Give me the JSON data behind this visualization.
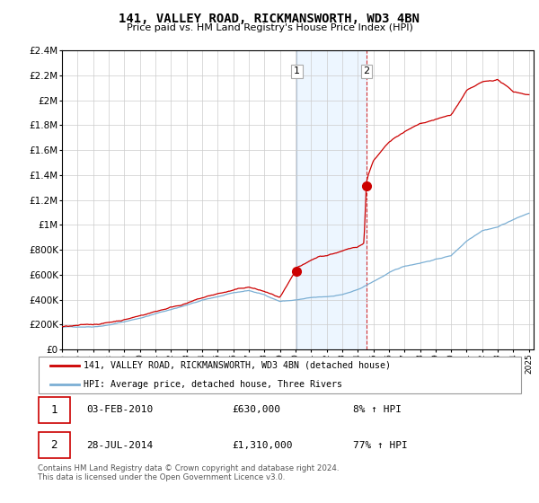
{
  "title": "141, VALLEY ROAD, RICKMANSWORTH, WD3 4BN",
  "subtitle": "Price paid vs. HM Land Registry's House Price Index (HPI)",
  "legend_entry1": "141, VALLEY ROAD, RICKMANSWORTH, WD3 4BN (detached house)",
  "legend_entry2": "HPI: Average price, detached house, Three Rivers",
  "annotation1_label": "1",
  "annotation1_date": "03-FEB-2010",
  "annotation1_price": "£630,000",
  "annotation1_hpi": "8% ↑ HPI",
  "annotation1_year": 2010.09,
  "annotation1_value": 630000,
  "annotation2_label": "2",
  "annotation2_date": "28-JUL-2014",
  "annotation2_price": "£1,310,000",
  "annotation2_hpi": "77% ↑ HPI",
  "annotation2_year": 2014.56,
  "annotation2_value": 1310000,
  "footer": "Contains HM Land Registry data © Crown copyright and database right 2024.\nThis data is licensed under the Open Government Licence v3.0.",
  "line1_color": "#cc0000",
  "line2_color": "#7bafd4",
  "ylim": [
    0,
    2400000
  ],
  "yticks": [
    0,
    200000,
    400000,
    600000,
    800000,
    1000000,
    1200000,
    1400000,
    1600000,
    1800000,
    2000000,
    2200000,
    2400000
  ],
  "background_color": "#ffffff",
  "plot_bg_color": "#ffffff",
  "grid_color": "#cccccc",
  "shade_color": "#ddeeff",
  "shade_alpha": 0.5
}
